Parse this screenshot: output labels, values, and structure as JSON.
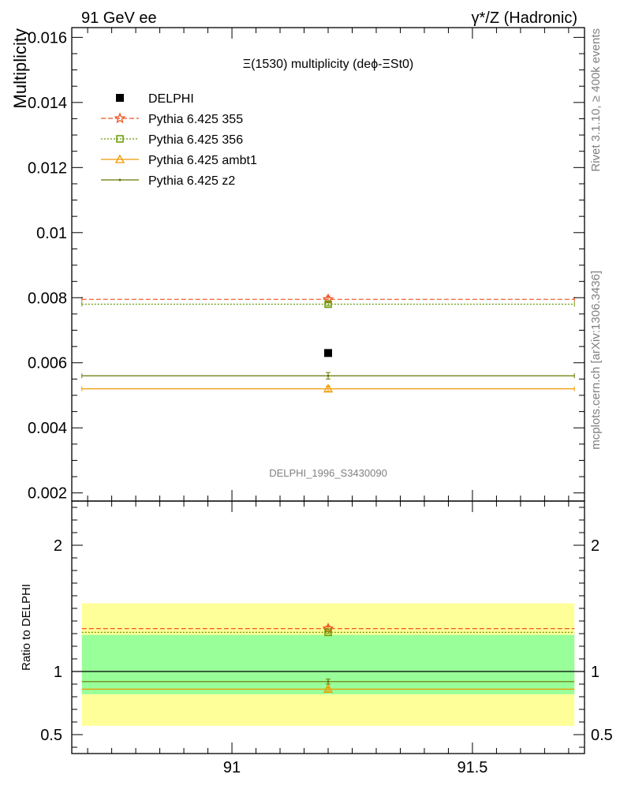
{
  "header": {
    "left": "91 GeV ee",
    "right": "γ*/Z (Hadronic)"
  },
  "side_text": {
    "rivet": "Rivet 3.1.10, ≥ 400k events",
    "mcplots": "mcplots.cern.ch [arXiv:1306.3436]"
  },
  "chart_data": [
    {
      "type": "scatter",
      "title": "Ξ(1530) multiplicity (deϕ-ΞSt0)",
      "ylabel": "Multiplicity",
      "watermark": "DELPHI_1996_S3430090",
      "xlim": [
        90.667,
        91.733
      ],
      "ylim": [
        0.00175,
        0.0163
      ],
      "x_ticks": [],
      "y_ticks": [
        "0.002",
        "0.004",
        "0.006",
        "0.008",
        "0.01",
        "0.012",
        "0.014",
        "0.016"
      ],
      "y_tick_values": [
        0.002,
        0.004,
        0.006,
        0.008,
        0.01,
        0.012,
        0.014,
        0.016
      ],
      "legend_position": "top-left",
      "series": [
        {
          "name": "DELPHI",
          "color": "#000000",
          "marker": "square",
          "x": 91.2,
          "y": 0.0063,
          "x_range": null
        },
        {
          "name": "Pythia 6.425 355",
          "color": "#ee5522",
          "marker": "star",
          "dash": "dashed",
          "x": 91.2,
          "y": 0.00795,
          "yerr": 0.0001,
          "x_range": [
            90.688,
            91.712
          ]
        },
        {
          "name": "Pythia 6.425 356",
          "color": "#669900",
          "marker": "open-square",
          "dash": "dotted",
          "x": 91.2,
          "y": 0.0078,
          "yerr": 5e-05,
          "x_range": [
            90.688,
            91.712
          ]
        },
        {
          "name": "Pythia 6.425 ambt1",
          "color": "#ee9900",
          "marker": "open-triangle",
          "dash": "solid",
          "x": 91.2,
          "y": 0.0052,
          "yerr": 8e-05,
          "x_range": [
            90.688,
            91.712
          ]
        },
        {
          "name": "Pythia 6.425 z2",
          "color": "#667700",
          "marker": "dot",
          "dash": "solid",
          "x": 91.2,
          "y": 0.0056,
          "yerr": 0.0001,
          "x_range": [
            90.688,
            91.712
          ]
        }
      ]
    },
    {
      "type": "scatter",
      "ylabel": "Ratio to DELPHI",
      "xlim": [
        90.667,
        91.733
      ],
      "ylim": [
        0.35,
        2.35
      ],
      "x_ticks": [
        "91",
        "91.5"
      ],
      "x_tick_values": [
        91,
        91.5
      ],
      "y_ticks": [
        "0.5",
        "1",
        "2"
      ],
      "y_tick_values": [
        0.5,
        1,
        2
      ],
      "bands": [
        {
          "name": "2 sigma",
          "color": "#ffff99",
          "low": 0.57,
          "high": 1.54
        },
        {
          "name": "1 sigma",
          "color": "#99ff99",
          "low": 0.82,
          "high": 1.29
        }
      ],
      "reference": 1,
      "series": [
        {
          "name": "Pythia 6.425 355",
          "color": "#ee5522",
          "marker": "star",
          "dash": "dashed",
          "x": 91.2,
          "y": 1.34,
          "yerr": 0.02
        },
        {
          "name": "Pythia 6.425 356",
          "color": "#669900",
          "marker": "open-square",
          "dash": "dotted",
          "x": 91.2,
          "y": 1.31,
          "yerr": 0.01
        },
        {
          "name": "Pythia 6.425 ambt1",
          "color": "#ee9900",
          "marker": "open-triangle",
          "dash": "solid",
          "x": 91.2,
          "y": 0.86,
          "yerr": 0.015
        },
        {
          "name": "Pythia 6.425 z2",
          "color": "#667700",
          "marker": "dot",
          "dash": "solid",
          "x": 91.2,
          "y": 0.92,
          "yerr": 0.02
        }
      ]
    }
  ]
}
